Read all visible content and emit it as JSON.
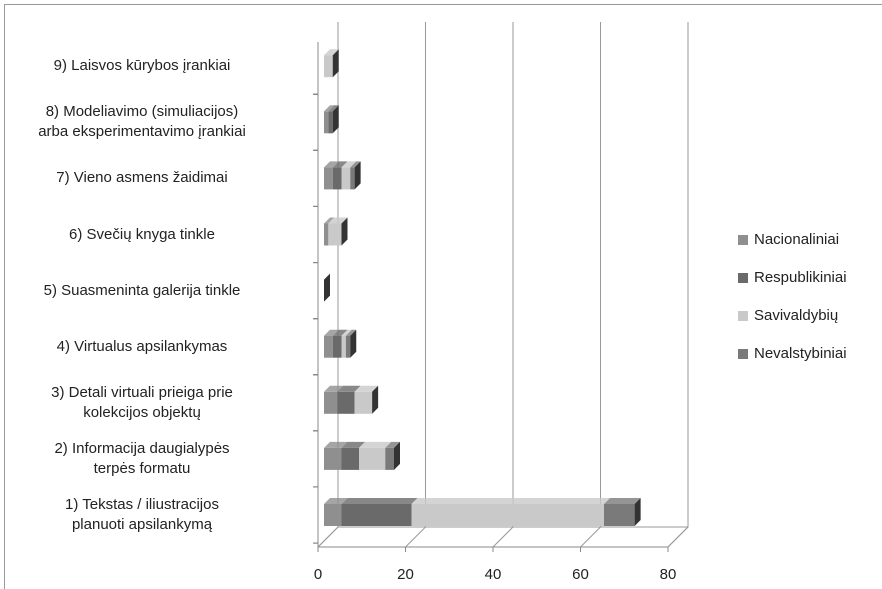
{
  "chart_data": {
    "type": "bar",
    "orientation": "horizontal",
    "stacked": true,
    "categories": [
      "1) Tekstas / iliustracijos\nplanuoti apsilankymą",
      "2) Informacija daugialypės\nterpės formatu",
      "3) Detali virtuali prieiga prie\nkolekcijos  objektų",
      "4) Virtualus apsilankymas",
      "5) Suasmeninta galerija tinkle",
      "6) Svečių knyga tinkle",
      "7) Vieno asmens žaidimai",
      "8) Modeliavimo (simuliacijos)\narba eksperimentavimo įrankiai",
      "9) Laisvos kūrybos įrankiai"
    ],
    "series": [
      {
        "name": "Nacionaliniai",
        "color": "#8f8f8f",
        "values": [
          4,
          4,
          3,
          2,
          0,
          1,
          2,
          1,
          0
        ]
      },
      {
        "name": "Respublikiniai",
        "color": "#6a6a6a",
        "values": [
          16,
          4,
          4,
          2,
          0,
          0,
          2,
          1,
          0
        ]
      },
      {
        "name": "Savivaldybių",
        "color": "#c9c9c9",
        "values": [
          44,
          6,
          4,
          1,
          0,
          3,
          2,
          0,
          2
        ]
      },
      {
        "name": "Nevalstybiniai",
        "color": "#7a7a7a",
        "values": [
          7,
          2,
          0,
          1,
          0,
          0,
          1,
          0,
          0
        ]
      }
    ],
    "xlim": [
      0,
      80
    ],
    "xticks": [
      0,
      20,
      40,
      60,
      80
    ],
    "grid": true,
    "legend": "right"
  }
}
